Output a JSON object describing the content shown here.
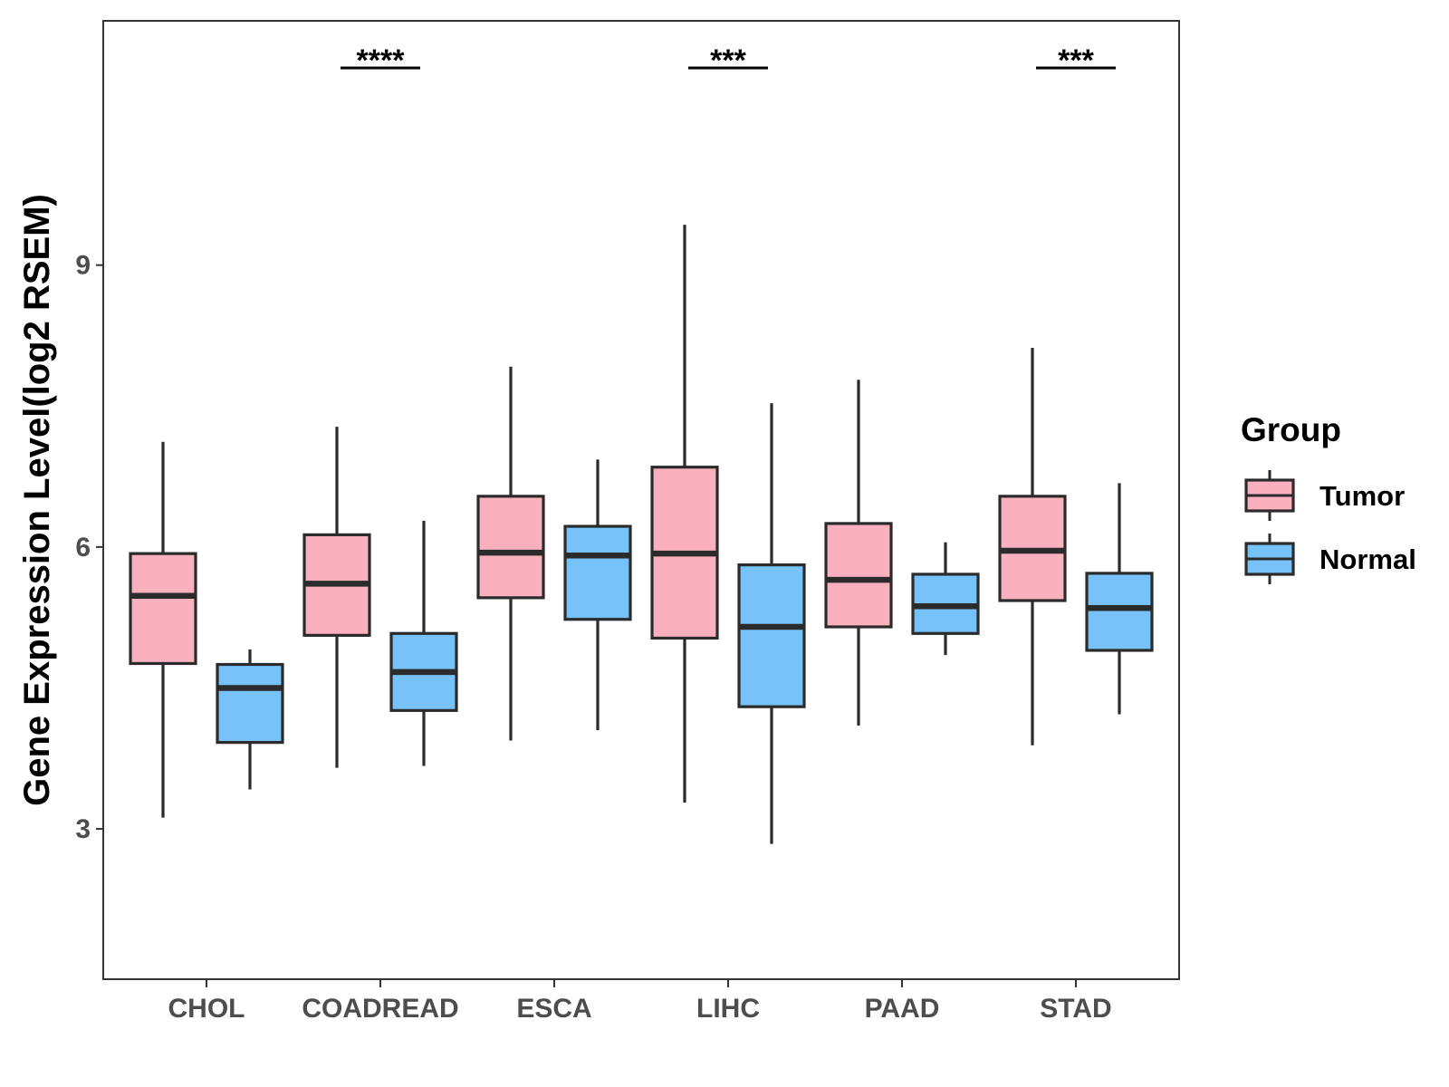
{
  "chart_data": {
    "type": "boxplot",
    "title": "",
    "xlabel": "",
    "ylabel": "Gene Expression Level(log2 RSEM)",
    "ylim": [
      1.4,
      11.6
    ],
    "yticks": [
      3,
      6,
      9
    ],
    "ytick_labels": [
      "3",
      "6",
      "9"
    ],
    "grid": false,
    "legend": {
      "title": "Group",
      "position": "right",
      "items": [
        {
          "name": "Tumor",
          "color": "#FBB0C0"
        },
        {
          "name": "Normal",
          "color": "#77C2F8"
        }
      ]
    },
    "categories": [
      "CHOL",
      "COADREAD",
      "ESCA",
      "LIHC",
      "PAAD",
      "STAD"
    ],
    "series": [
      {
        "name": "Tumor",
        "color": "#FBB0C0",
        "boxes": [
          {
            "category": "CHOL",
            "min": 3.12,
            "q1": 4.76,
            "median": 5.48,
            "q3": 5.93,
            "max": 7.12
          },
          {
            "category": "COADREAD",
            "min": 3.65,
            "q1": 5.06,
            "median": 5.61,
            "q3": 6.13,
            "max": 7.28
          },
          {
            "category": "ESCA",
            "min": 3.94,
            "q1": 5.46,
            "median": 5.94,
            "q3": 6.54,
            "max": 7.92
          },
          {
            "category": "LIHC",
            "min": 3.28,
            "q1": 5.03,
            "median": 5.93,
            "q3": 6.85,
            "max": 9.43
          },
          {
            "category": "PAAD",
            "min": 4.1,
            "q1": 5.15,
            "median": 5.65,
            "q3": 6.25,
            "max": 7.78
          },
          {
            "category": "STAD",
            "min": 3.89,
            "q1": 5.43,
            "median": 5.96,
            "q3": 6.54,
            "max": 8.12
          }
        ]
      },
      {
        "name": "Normal",
        "color": "#77C2F8",
        "boxes": [
          {
            "category": "CHOL",
            "min": 3.42,
            "q1": 3.92,
            "median": 4.5,
            "q3": 4.75,
            "max": 4.91
          },
          {
            "category": "COADREAD",
            "min": 3.67,
            "q1": 4.26,
            "median": 4.67,
            "q3": 5.08,
            "max": 6.28
          },
          {
            "category": "ESCA",
            "min": 4.05,
            "q1": 5.23,
            "median": 5.91,
            "q3": 6.22,
            "max": 6.93
          },
          {
            "category": "LIHC",
            "min": 2.84,
            "q1": 4.3,
            "median": 5.15,
            "q3": 5.81,
            "max": 7.53
          },
          {
            "category": "PAAD",
            "min": 4.85,
            "q1": 5.08,
            "median": 5.37,
            "q3": 5.71,
            "max": 6.05
          },
          {
            "category": "STAD",
            "min": 4.22,
            "q1": 4.9,
            "median": 5.35,
            "q3": 5.72,
            "max": 6.68
          }
        ]
      }
    ],
    "annotations": [
      {
        "category": "COADREAD",
        "label": "****"
      },
      {
        "category": "LIHC",
        "label": "***"
      },
      {
        "category": "STAD",
        "label": "***"
      }
    ]
  }
}
